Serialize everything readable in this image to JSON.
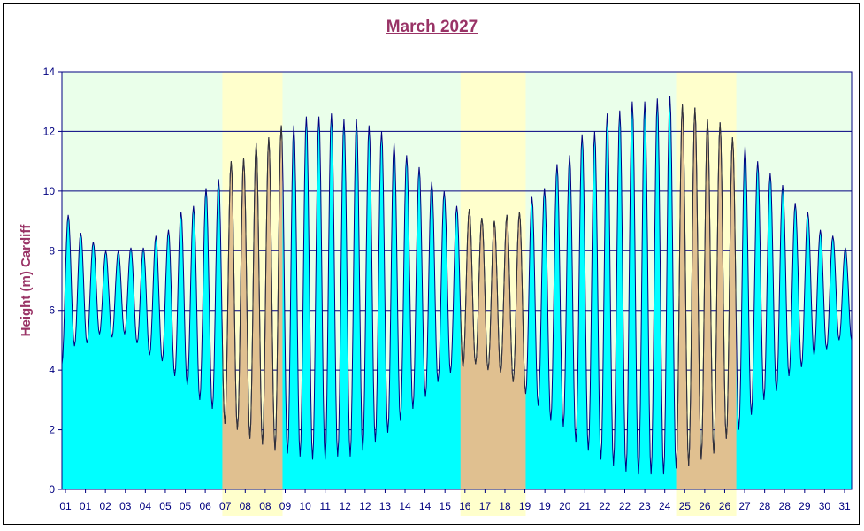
{
  "chart_data": {
    "type": "area",
    "title": "March 2027",
    "ylabel": "Height (m) Cardiff",
    "xlabel": "",
    "ylim": [
      0,
      14
    ],
    "yticks": [
      0,
      2,
      4,
      6,
      8,
      10,
      12,
      14
    ],
    "grid": "horizontal",
    "legend": "none",
    "x_range_days": [
      0,
      31.5
    ],
    "x_tick_labels": [
      {
        "day": 0,
        "label": "01"
      },
      {
        "day": 1,
        "label": "01"
      },
      {
        "day": 2,
        "label": "02"
      },
      {
        "day": 3,
        "label": "03"
      },
      {
        "day": 4,
        "label": "04"
      },
      {
        "day": 5,
        "label": "05"
      },
      {
        "day": 6,
        "label": "05"
      },
      {
        "day": 7,
        "label": "06"
      },
      {
        "day": 8,
        "label": "07"
      },
      {
        "day": 9,
        "label": "08"
      },
      {
        "day": 10,
        "label": "08"
      },
      {
        "day": 11,
        "label": "09"
      },
      {
        "day": 12,
        "label": "10"
      },
      {
        "day": 13,
        "label": "11"
      },
      {
        "day": 14,
        "label": "12"
      },
      {
        "day": 15,
        "label": "12"
      },
      {
        "day": 16,
        "label": "13"
      },
      {
        "day": 17,
        "label": "14"
      },
      {
        "day": 18,
        "label": "14"
      },
      {
        "day": 19,
        "label": "15"
      },
      {
        "day": 20,
        "label": "16"
      },
      {
        "day": 21,
        "label": "17"
      },
      {
        "day": 22,
        "label": "18"
      },
      {
        "day": 23,
        "label": "19"
      },
      {
        "day": 24,
        "label": "19"
      },
      {
        "day": 25,
        "label": "20"
      },
      {
        "day": 26,
        "label": "21"
      },
      {
        "day": 27,
        "label": "22"
      },
      {
        "day": 28,
        "label": "22"
      },
      {
        "day": 29,
        "label": "23"
      },
      {
        "day": 30,
        "label": "24"
      },
      {
        "day": 31,
        "label": "25"
      },
      {
        "day": 32,
        "label": "26"
      },
      {
        "day": 33,
        "label": "26"
      },
      {
        "day": 34,
        "label": "27"
      },
      {
        "day": 35,
        "label": "28"
      },
      {
        "day": 36,
        "label": "28"
      },
      {
        "day": 37,
        "label": "29"
      },
      {
        "day": 38,
        "label": "30"
      },
      {
        "day": 39,
        "label": "31"
      }
    ],
    "highlight_periods": [
      {
        "start_day": 6.4,
        "end_day": 8.8
      },
      {
        "start_day": 15.9,
        "end_day": 18.5
      },
      {
        "start_day": 24.5,
        "end_day": 26.9
      },
      {
        "start_day": 33.5,
        "end_day": 36.1
      }
    ],
    "tides": [
      {
        "high": 9.2,
        "low": 4.2
      },
      {
        "high": 8.6,
        "low": 4.8
      },
      {
        "high": 8.3,
        "low": 4.9
      },
      {
        "high": 8.0,
        "low": 5.2
      },
      {
        "high": 8.0,
        "low": 5.1
      },
      {
        "high": 8.1,
        "low": 5.2
      },
      {
        "high": 8.1,
        "low": 4.9
      },
      {
        "high": 8.5,
        "low": 4.5
      },
      {
        "high": 8.7,
        "low": 4.3
      },
      {
        "high": 9.3,
        "low": 3.8
      },
      {
        "high": 9.5,
        "low": 3.5
      },
      {
        "high": 10.1,
        "low": 3.0
      },
      {
        "high": 10.4,
        "low": 2.7
      },
      {
        "high": 11.0,
        "low": 2.2
      },
      {
        "high": 11.1,
        "low": 2.0
      },
      {
        "high": 11.6,
        "low": 1.7
      },
      {
        "high": 11.8,
        "low": 1.5
      },
      {
        "high": 12.2,
        "low": 1.3
      },
      {
        "high": 12.2,
        "low": 1.2
      },
      {
        "high": 12.5,
        "low": 1.1
      },
      {
        "high": 12.5,
        "low": 1.0
      },
      {
        "high": 12.6,
        "low": 1.0
      },
      {
        "high": 12.4,
        "low": 1.1
      },
      {
        "high": 12.4,
        "low": 1.1
      },
      {
        "high": 12.2,
        "low": 1.3
      },
      {
        "high": 12.0,
        "low": 1.6
      },
      {
        "high": 11.6,
        "low": 1.9
      },
      {
        "high": 11.2,
        "low": 2.3
      },
      {
        "high": 10.8,
        "low": 2.7
      },
      {
        "high": 10.3,
        "low": 3.1
      },
      {
        "high": 10.0,
        "low": 3.6
      },
      {
        "high": 9.5,
        "low": 3.9
      },
      {
        "high": 9.4,
        "low": 4.1
      },
      {
        "high": 9.1,
        "low": 4.2
      },
      {
        "high": 9.0,
        "low": 4.0
      },
      {
        "high": 9.2,
        "low": 3.9
      },
      {
        "high": 9.3,
        "low": 3.6
      },
      {
        "high": 9.8,
        "low": 3.2
      },
      {
        "high": 10.1,
        "low": 2.8
      },
      {
        "high": 10.9,
        "low": 2.3
      },
      {
        "high": 11.2,
        "low": 2.1
      },
      {
        "high": 11.9,
        "low": 1.6
      },
      {
        "high": 12.0,
        "low": 1.3
      },
      {
        "high": 12.6,
        "low": 1.0
      },
      {
        "high": 12.7,
        "low": 0.8
      },
      {
        "high": 13.0,
        "low": 0.6
      },
      {
        "high": 13.0,
        "low": 0.5
      },
      {
        "high": 13.1,
        "low": 0.5
      },
      {
        "high": 13.2,
        "low": 0.5
      },
      {
        "high": 12.9,
        "low": 0.7
      },
      {
        "high": 12.8,
        "low": 0.8
      },
      {
        "high": 12.4,
        "low": 1.0
      },
      {
        "high": 12.3,
        "low": 1.2
      },
      {
        "high": 11.8,
        "low": 1.7
      },
      {
        "high": 11.5,
        "low": 2.0
      },
      {
        "high": 11.0,
        "low": 2.5
      },
      {
        "high": 10.6,
        "low": 3.0
      },
      {
        "high": 10.2,
        "low": 3.3
      },
      {
        "high": 9.6,
        "low": 3.8
      },
      {
        "high": 9.3,
        "low": 4.1
      },
      {
        "high": 8.7,
        "low": 4.5
      },
      {
        "high": 8.5,
        "low": 4.7
      },
      {
        "high": 8.1,
        "low": 5.0
      }
    ],
    "colors": {
      "plot_background": "#eaffea",
      "highlight_background": "#ffffcc",
      "water_fill": "#00ffff",
      "water_fill_highlight": "#e0c090",
      "tide_line": "#000080",
      "tide_line_highlight": "#333333",
      "gridline": "#000080",
      "axis_text": "#000080",
      "title_text": "#993366"
    }
  }
}
